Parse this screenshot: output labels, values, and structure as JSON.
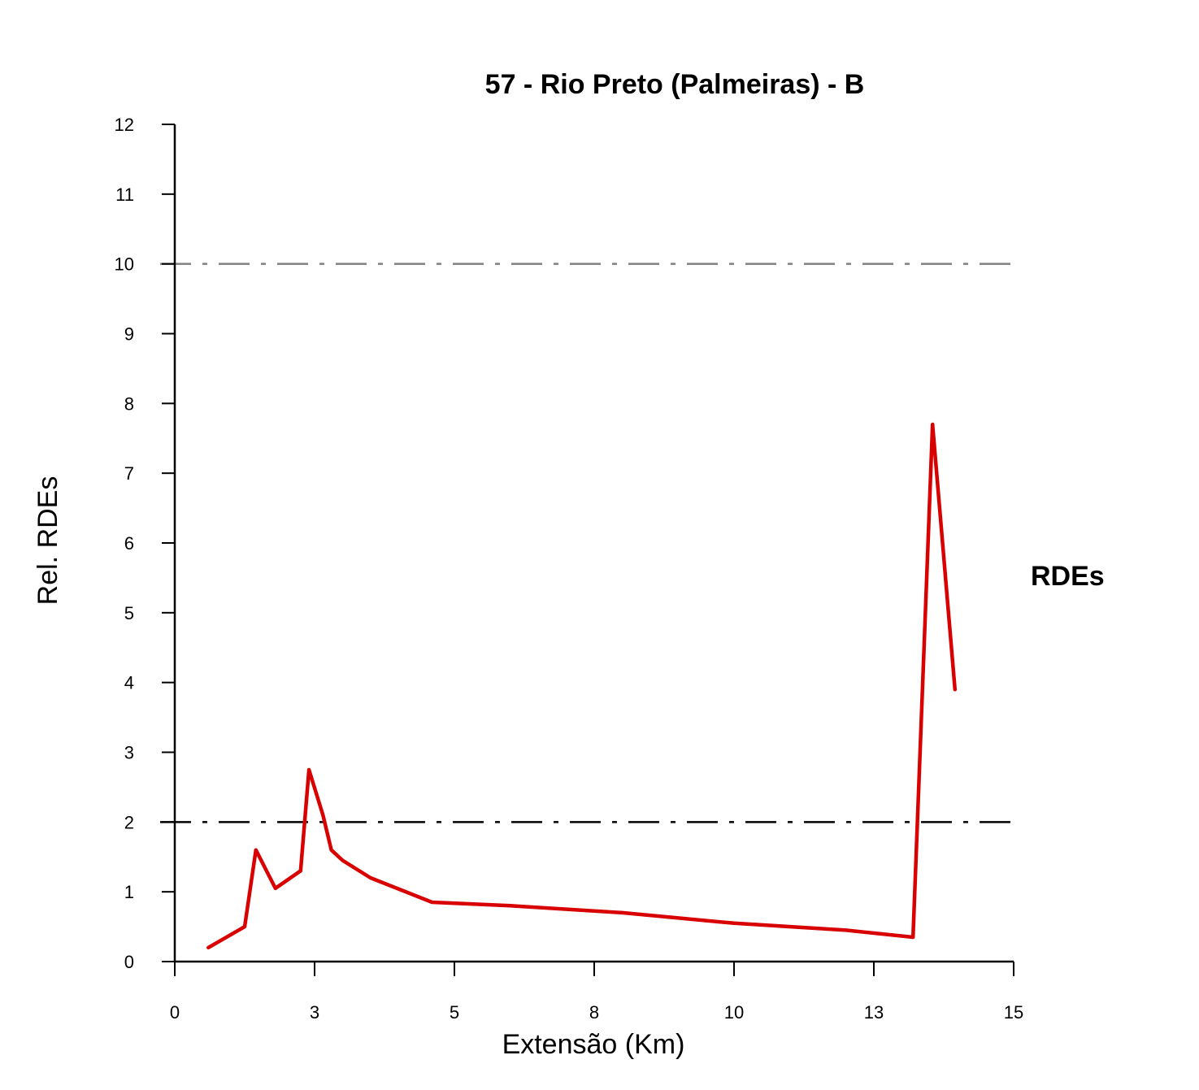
{
  "chart_data": {
    "type": "line",
    "title": "57 - Rio Preto (Palmeiras) - B",
    "xlabel": "Extensão (Km)",
    "ylabel": "Rel. RDEs",
    "xlim": [
      0,
      15
    ],
    "ylim": [
      0,
      12
    ],
    "x_tick_values": [
      0,
      2.5,
      5,
      7.5,
      10,
      12.5,
      15
    ],
    "x_tick_labels": [
      "0",
      "3",
      "5",
      "8",
      "10",
      "13",
      "15"
    ],
    "y_ticks": [
      0,
      1,
      2,
      3,
      4,
      5,
      6,
      7,
      8,
      9,
      10,
      11,
      12
    ],
    "grid": false,
    "legend_position": "right",
    "reference_lines": [
      {
        "y": 10,
        "style": "dash-dot",
        "color": "#808080"
      },
      {
        "y": 2,
        "style": "dash-dot",
        "color": "#000000"
      }
    ],
    "series": [
      {
        "name": "RDEs",
        "color": "#d90000",
        "x": [
          0.6,
          1.25,
          1.45,
          1.8,
          2.25,
          2.4,
          2.65,
          2.8,
          3.0,
          3.5,
          4.6,
          6.0,
          8.0,
          10.0,
          12.0,
          13.2,
          13.55,
          13.95
        ],
        "y": [
          0.2,
          0.5,
          1.6,
          1.05,
          1.3,
          2.75,
          2.1,
          1.6,
          1.45,
          1.2,
          0.85,
          0.8,
          0.7,
          0.55,
          0.45,
          0.35,
          7.7,
          3.9
        ]
      }
    ]
  }
}
